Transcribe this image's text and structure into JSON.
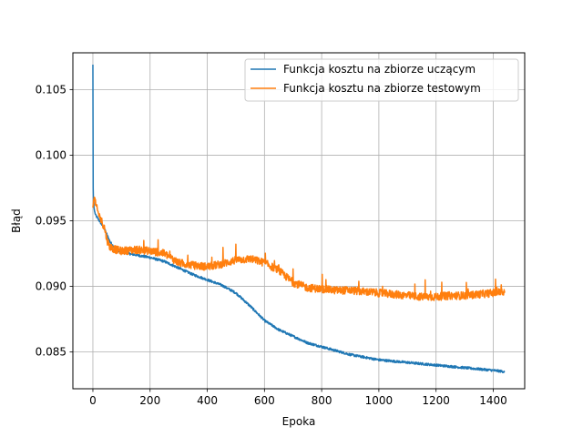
{
  "chart_data": {
    "type": "line",
    "title": "",
    "xlabel": "Epoka",
    "ylabel": "Błąd",
    "xlim": [
      -70,
      1510
    ],
    "ylim": [
      0.0822,
      0.1078
    ],
    "xticks": [
      0,
      200,
      400,
      600,
      800,
      1000,
      1200,
      1400
    ],
    "yticks": [
      0.085,
      0.09,
      0.095,
      0.1,
      0.105
    ],
    "xtick_labels": [
      "0",
      "200",
      "400",
      "600",
      "800",
      "1000",
      "1200",
      "1400"
    ],
    "ytick_labels": [
      "0.085",
      "0.090",
      "0.095",
      "0.100",
      "0.105"
    ],
    "grid": true,
    "legend_position": "top-right",
    "series": [
      {
        "name": "Funkcja kosztu na zbiorze uczącym",
        "color": "#1f77b4",
        "x": [
          0,
          1,
          2,
          4,
          6,
          10,
          20,
          40,
          60,
          80,
          100,
          150,
          200,
          250,
          300,
          350,
          400,
          450,
          500,
          550,
          600,
          650,
          700,
          750,
          800,
          850,
          900,
          950,
          1000,
          1050,
          1100,
          1150,
          1200,
          1250,
          1300,
          1350,
          1400,
          1440
        ],
        "y": [
          0.1069,
          0.0975,
          0.0965,
          0.096,
          0.0957,
          0.0954,
          0.0951,
          0.0944,
          0.0934,
          0.0928,
          0.0926,
          0.0924,
          0.0922,
          0.0919,
          0.0914,
          0.0909,
          0.0905,
          0.0901,
          0.0895,
          0.0885,
          0.0874,
          0.0867,
          0.0862,
          0.0857,
          0.0854,
          0.0851,
          0.0848,
          0.0846,
          0.0844,
          0.0843,
          0.0842,
          0.0841,
          0.084,
          0.0839,
          0.0838,
          0.0837,
          0.0836,
          0.0835
        ]
      },
      {
        "name": "Funkcja kosztu na zbiorze testowym",
        "color": "#ff7f0e",
        "x": [
          0,
          2,
          5,
          10,
          20,
          30,
          40,
          50,
          60,
          80,
          100,
          150,
          200,
          250,
          300,
          350,
          400,
          450,
          500,
          550,
          600,
          650,
          700,
          750,
          800,
          850,
          900,
          950,
          1000,
          1050,
          1100,
          1150,
          1200,
          1250,
          1300,
          1350,
          1400,
          1440
        ],
        "y": [
          0.096,
          0.0965,
          0.0968,
          0.0962,
          0.0955,
          0.095,
          0.0945,
          0.0935,
          0.093,
          0.0928,
          0.0927,
          0.0928,
          0.0927,
          0.0925,
          0.0918,
          0.0916,
          0.0915,
          0.0917,
          0.092,
          0.0921,
          0.0918,
          0.0912,
          0.0903,
          0.0899,
          0.0898,
          0.0897,
          0.0897,
          0.0896,
          0.0895,
          0.0894,
          0.0893,
          0.0892,
          0.0892,
          0.0893,
          0.0893,
          0.0894,
          0.0895,
          0.0896
        ]
      }
    ]
  }
}
